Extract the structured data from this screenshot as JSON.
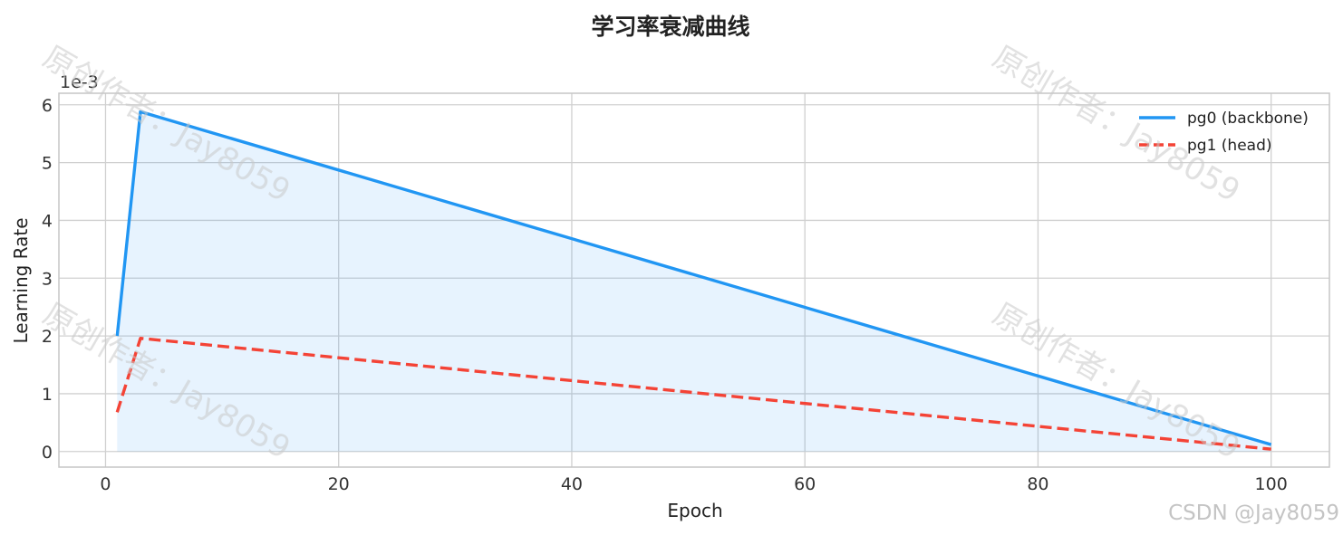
{
  "chart_data": {
    "type": "line",
    "title": "学习率衰减曲线",
    "xlabel": "Epoch",
    "ylabel": "Learning Rate",
    "y_scale_label": "1e-3",
    "xlim": [
      -4,
      105
    ],
    "ylim": [
      -0.27,
      6.2
    ],
    "x_ticks": [
      0,
      20,
      40,
      60,
      80,
      100
    ],
    "y_ticks": [
      0,
      1,
      2,
      3,
      4,
      5,
      6
    ],
    "grid": true,
    "legend_position": "top-right",
    "series": [
      {
        "name": "pg0 (backbone)",
        "color": "#2196F3",
        "style": "solid",
        "fill": true,
        "x": [
          1,
          3,
          100
        ],
        "y": [
          2.0,
          5.88,
          0.12
        ]
      },
      {
        "name": "pg1 (head)",
        "color": "#F44336",
        "style": "dashed",
        "fill": false,
        "x": [
          1,
          3,
          100
        ],
        "y": [
          0.68,
          1.96,
          0.04
        ]
      }
    ]
  },
  "watermark": {
    "text": "原创作者：Jay8059",
    "credit": "CSDN @Jay8059"
  }
}
